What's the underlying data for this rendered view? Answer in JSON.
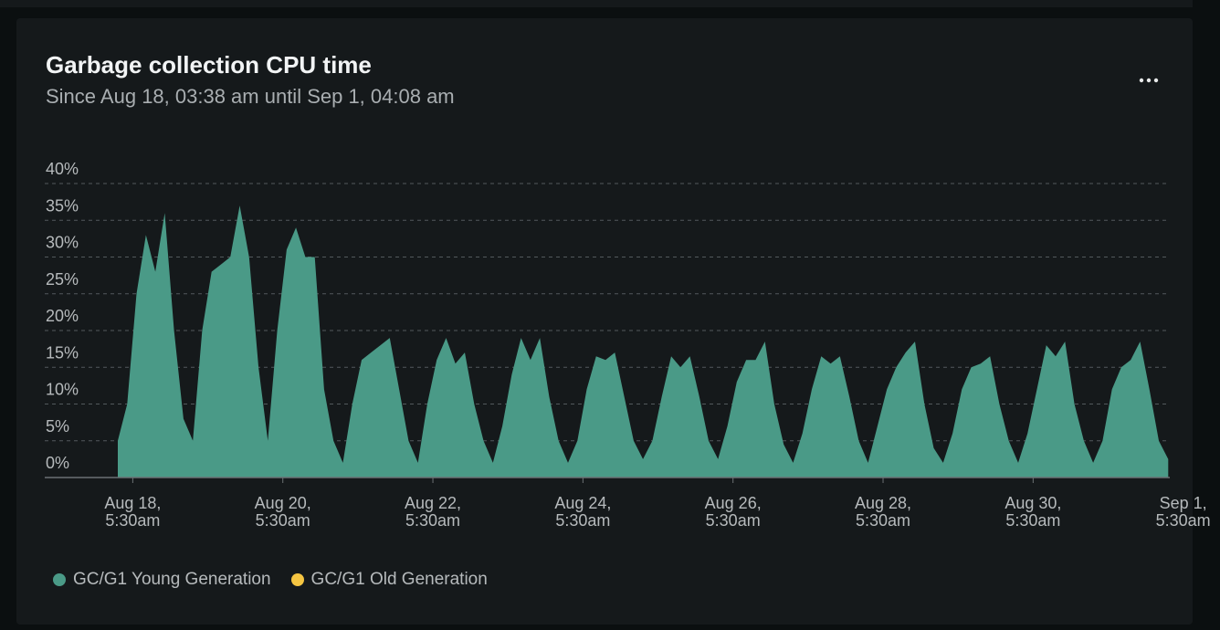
{
  "chart_data": {
    "type": "area",
    "title": "Garbage collection CPU time",
    "subtitle": "Since Aug 18, 03:38 am until Sep 1, 04:08 am",
    "x": [
      "08-18 03:38",
      "08-18 06:38",
      "08-18 09:38",
      "08-18 12:38",
      "08-18 15:38",
      "08-18 18:38",
      "08-18 21:38",
      "08-19 00:38",
      "08-19 03:38",
      "08-19 06:38",
      "08-19 09:38",
      "08-19 12:38",
      "08-19 15:38",
      "08-19 18:38",
      "08-19 21:38",
      "08-20 00:38",
      "08-20 03:38",
      "08-20 06:38",
      "08-20 09:38",
      "08-20 12:38",
      "08-20 15:38",
      "08-20 18:38",
      "08-20 21:38",
      "08-21 00:38",
      "08-21 03:38",
      "08-21 06:38",
      "08-21 09:38",
      "08-21 12:38",
      "08-21 15:38",
      "08-21 18:38",
      "08-21 21:38",
      "08-22 00:38",
      "08-22 03:38",
      "08-22 06:38",
      "08-22 09:38",
      "08-22 12:38",
      "08-22 15:38",
      "08-22 18:38",
      "08-22 21:38",
      "08-23 00:38",
      "08-23 03:38",
      "08-23 06:38",
      "08-23 09:38",
      "08-23 12:38",
      "08-23 15:38",
      "08-23 18:38",
      "08-23 21:38",
      "08-24 00:38",
      "08-24 03:38",
      "08-24 06:38",
      "08-24 09:38",
      "08-24 12:38",
      "08-24 15:38",
      "08-24 18:38",
      "08-24 21:38",
      "08-25 00:38",
      "08-25 03:38",
      "08-25 06:38",
      "08-25 09:38",
      "08-25 12:38",
      "08-25 15:38",
      "08-25 18:38",
      "08-25 21:38",
      "08-26 00:38",
      "08-26 03:38",
      "08-26 06:38",
      "08-26 09:38",
      "08-26 12:38",
      "08-26 15:38",
      "08-26 18:38",
      "08-26 21:38",
      "08-27 00:38",
      "08-27 03:38",
      "08-27 06:38",
      "08-27 09:38",
      "08-27 12:38",
      "08-27 15:38",
      "08-27 18:38",
      "08-27 21:38",
      "08-28 00:38",
      "08-28 03:38",
      "08-28 06:38",
      "08-28 09:38",
      "08-28 12:38",
      "08-28 15:38",
      "08-28 18:38",
      "08-28 21:38",
      "08-29 00:38",
      "08-29 03:38",
      "08-29 06:38",
      "08-29 09:38",
      "08-29 12:38",
      "08-29 15:38",
      "08-29 18:38",
      "08-29 21:38",
      "08-30 00:38",
      "08-30 03:38",
      "08-30 06:38",
      "08-30 09:38",
      "08-30 12:38",
      "08-30 15:38",
      "08-30 18:38",
      "08-30 21:38",
      "08-31 00:38",
      "08-31 03:38",
      "08-31 06:38",
      "08-31 09:38",
      "08-31 12:38",
      "08-31 15:38",
      "08-31 18:38",
      "08-31 21:38",
      "09-01 00:38",
      "09-01 03:38"
    ],
    "series": [
      {
        "name": "GC/G1 Young Generation",
        "color": "#4a9a87",
        "values": [
          5,
          10,
          25,
          33,
          28,
          36,
          20,
          8,
          5,
          20,
          28,
          29,
          30,
          37,
          30,
          15,
          5,
          20,
          31,
          34,
          30,
          30,
          12,
          5,
          2,
          10,
          16,
          17,
          18,
          19,
          12,
          5,
          2,
          10,
          16,
          19,
          15.5,
          17,
          10,
          5,
          2,
          7,
          14,
          19,
          16,
          19,
          11,
          5,
          2,
          5,
          12,
          16.5,
          16,
          17,
          11,
          5,
          2.5,
          5,
          11,
          16.5,
          15,
          16.5,
          11,
          5,
          2.5,
          7,
          13,
          16,
          16,
          18.5,
          10,
          4.5,
          2,
          6,
          12,
          16.5,
          15.5,
          16.5,
          11,
          5,
          2,
          7,
          12,
          15,
          17,
          18.5,
          10,
          4,
          2,
          6,
          12,
          15,
          15.5,
          16.5,
          10,
          5,
          2,
          6,
          12,
          18,
          16.5,
          18.5,
          10,
          5,
          2,
          5,
          12,
          15,
          16,
          18.5,
          12,
          5,
          2.5
        ]
      },
      {
        "name": "GC/G1 Old Generation",
        "color": "#f5c542"
      }
    ],
    "xlim": [
      "08-18 03:38",
      "09-01 04:08"
    ],
    "xticks": [
      {
        "value": "08-18 05:30",
        "label": "Aug 18, 5:30am"
      },
      {
        "value": "08-20 05:30",
        "label": "Aug 20, 5:30am"
      },
      {
        "value": "08-22 05:30",
        "label": "Aug 22, 5:30am"
      },
      {
        "value": "08-24 05:30",
        "label": "Aug 24, 5:30am"
      },
      {
        "value": "08-26 05:30",
        "label": "Aug 26, 5:30am"
      },
      {
        "value": "08-28 05:30",
        "label": "Aug 28, 5:30am"
      },
      {
        "value": "08-30 05:30",
        "label": "Aug 30, 5:30am"
      },
      {
        "value": "09-01 05:30",
        "label": "Sep 1, 5:30am"
      }
    ],
    "ylim": [
      0,
      40
    ],
    "yticks": [
      {
        "value": 0,
        "label": "0%"
      },
      {
        "value": 5,
        "label": "5%"
      },
      {
        "value": 10,
        "label": "10%"
      },
      {
        "value": 15,
        "label": "15%"
      },
      {
        "value": 20,
        "label": "20%"
      },
      {
        "value": 25,
        "label": "25%"
      },
      {
        "value": 30,
        "label": "30%"
      },
      {
        "value": 35,
        "label": "35%"
      },
      {
        "value": 40,
        "label": "40%"
      }
    ],
    "grid": true
  }
}
